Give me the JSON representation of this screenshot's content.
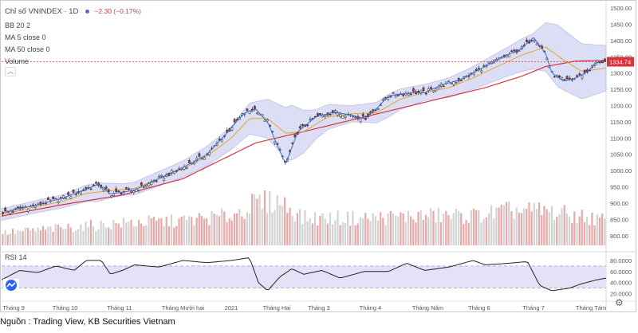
{
  "legend": {
    "symbol": "Chỉ số VNINDEX · 1D",
    "change": "−2.30 (−0.17%)",
    "bb": "BB 20 2",
    "ma5": "MA 5 close 0",
    "ma50": "MA 50 close 0",
    "volume": "Volume",
    "collapse": "︿"
  },
  "rsi_label": "RSI 14",
  "source_note": "Nguồn : Trading View, KB Securities Vietnam",
  "colors": {
    "up": "#ffffff",
    "down": "#c0392b",
    "ma5": "#3b6fd4",
    "ma50": "#d8343f",
    "mid": "#e0a72c",
    "band": "#cfd3f2",
    "volume": "#e7a8a8",
    "volume_gray": "#d3d3d3",
    "rsi": "#222222",
    "rsi_band": "#e5e1f7",
    "price_label_bg": "#d8343f"
  },
  "chart_data": {
    "type": "candlestick",
    "title": "Chỉ số VNINDEX · 1D",
    "last_price": "1334.74",
    "price_axis": {
      "ylim": [
        770,
        1510
      ],
      "ticks": [
        "1500.00",
        "1450.00",
        "1400.00",
        "1350.00",
        "1300.00",
        "1250.00",
        "1200.00",
        "1150.00",
        "1100.00",
        "1050.00",
        "1000.00",
        "950.00",
        "900.00",
        "850.00",
        "800.00"
      ]
    },
    "rsi_axis": {
      "ylim": [
        15,
        90
      ],
      "ticks": [
        "80.0000",
        "60.0000",
        "40.0000",
        "20.0000"
      ],
      "overbought": 70,
      "oversold": 30
    },
    "x_labels": [
      "Tháng 9",
      "Tháng 10",
      "Tháng 11",
      "Tháng Mười hai",
      "2021",
      "Tháng Hai",
      "Tháng 3",
      "Tháng 4",
      "Tháng Năm",
      "Tháng 6",
      "Tháng 7",
      "Tháng Tám"
    ],
    "x_label_pos": [
      0.02,
      0.105,
      0.195,
      0.3,
      0.38,
      0.455,
      0.525,
      0.61,
      0.705,
      0.79,
      0.88,
      0.975
    ],
    "close_anchors": [
      [
        0,
        870
      ],
      [
        0.06,
        895
      ],
      [
        0.1,
        915
      ],
      [
        0.13,
        935
      ],
      [
        0.16,
        958
      ],
      [
        0.18,
        928
      ],
      [
        0.22,
        940
      ],
      [
        0.26,
        975
      ],
      [
        0.3,
        1010
      ],
      [
        0.34,
        1050
      ],
      [
        0.37,
        1110
      ],
      [
        0.4,
        1175
      ],
      [
        0.42,
        1190
      ],
      [
        0.44,
        1150
      ],
      [
        0.46,
        1060
      ],
      [
        0.47,
        1020
      ],
      [
        0.49,
        1120
      ],
      [
        0.52,
        1165
      ],
      [
        0.55,
        1180
      ],
      [
        0.58,
        1170
      ],
      [
        0.6,
        1160
      ],
      [
        0.62,
        1190
      ],
      [
        0.64,
        1230
      ],
      [
        0.68,
        1240
      ],
      [
        0.7,
        1240
      ],
      [
        0.73,
        1265
      ],
      [
        0.76,
        1280
      ],
      [
        0.8,
        1320
      ],
      [
        0.83,
        1350
      ],
      [
        0.86,
        1375
      ],
      [
        0.88,
        1410
      ],
      [
        0.9,
        1360
      ],
      [
        0.91,
        1300
      ],
      [
        0.93,
        1275
      ],
      [
        0.95,
        1285
      ],
      [
        0.97,
        1305
      ],
      [
        0.985,
        1335
      ],
      [
        1,
        1334.74
      ]
    ],
    "ma50_anchors": [
      [
        0,
        860
      ],
      [
        0.1,
        895
      ],
      [
        0.2,
        925
      ],
      [
        0.3,
        975
      ],
      [
        0.36,
        1030
      ],
      [
        0.42,
        1085
      ],
      [
        0.5,
        1120
      ],
      [
        0.6,
        1165
      ],
      [
        0.7,
        1210
      ],
      [
        0.8,
        1255
      ],
      [
        0.86,
        1290
      ],
      [
        0.9,
        1320
      ],
      [
        0.95,
        1337
      ],
      [
        1,
        1338
      ]
    ],
    "mid_anchors": [
      [
        0,
        865
      ],
      [
        0.06,
        890
      ],
      [
        0.1,
        905
      ],
      [
        0.14,
        930
      ],
      [
        0.18,
        938
      ],
      [
        0.22,
        945
      ],
      [
        0.26,
        975
      ],
      [
        0.3,
        1005
      ],
      [
        0.34,
        1045
      ],
      [
        0.38,
        1100
      ],
      [
        0.41,
        1160
      ],
      [
        0.44,
        1160
      ],
      [
        0.47,
        1115
      ],
      [
        0.5,
        1120
      ],
      [
        0.54,
        1165
      ],
      [
        0.58,
        1175
      ],
      [
        0.62,
        1178
      ],
      [
        0.66,
        1220
      ],
      [
        0.7,
        1240
      ],
      [
        0.74,
        1255
      ],
      [
        0.78,
        1285
      ],
      [
        0.82,
        1320
      ],
      [
        0.86,
        1355
      ],
      [
        0.9,
        1380
      ],
      [
        0.93,
        1340
      ],
      [
        0.96,
        1305
      ],
      [
        1,
        1315
      ]
    ],
    "band_width_anchors": [
      [
        0,
        18
      ],
      [
        0.1,
        20
      ],
      [
        0.16,
        28
      ],
      [
        0.2,
        18
      ],
      [
        0.3,
        25
      ],
      [
        0.38,
        35
      ],
      [
        0.44,
        60
      ],
      [
        0.48,
        85
      ],
      [
        0.52,
        45
      ],
      [
        0.58,
        25
      ],
      [
        0.64,
        35
      ],
      [
        0.7,
        25
      ],
      [
        0.78,
        35
      ],
      [
        0.84,
        45
      ],
      [
        0.88,
        55
      ],
      [
        0.92,
        95
      ],
      [
        0.96,
        85
      ],
      [
        1,
        70
      ]
    ],
    "volume_anchors": [
      [
        0,
        0.25
      ],
      [
        0.1,
        0.35
      ],
      [
        0.2,
        0.45
      ],
      [
        0.3,
        0.5
      ],
      [
        0.38,
        0.6
      ],
      [
        0.42,
        0.85
      ],
      [
        0.46,
        0.9
      ],
      [
        0.5,
        0.55
      ],
      [
        0.6,
        0.55
      ],
      [
        0.7,
        0.6
      ],
      [
        0.78,
        0.6
      ],
      [
        0.84,
        0.7
      ],
      [
        0.9,
        0.7
      ],
      [
        1,
        0.5
      ]
    ],
    "rsi_anchors": [
      [
        0,
        45
      ],
      [
        0.03,
        62
      ],
      [
        0.06,
        58
      ],
      [
        0.09,
        70
      ],
      [
        0.12,
        62
      ],
      [
        0.14,
        80
      ],
      [
        0.165,
        80
      ],
      [
        0.18,
        55
      ],
      [
        0.2,
        62
      ],
      [
        0.22,
        72
      ],
      [
        0.26,
        68
      ],
      [
        0.3,
        80
      ],
      [
        0.34,
        76
      ],
      [
        0.38,
        80
      ],
      [
        0.41,
        85
      ],
      [
        0.425,
        40
      ],
      [
        0.44,
        25
      ],
      [
        0.46,
        50
      ],
      [
        0.48,
        65
      ],
      [
        0.5,
        55
      ],
      [
        0.53,
        62
      ],
      [
        0.56,
        48
      ],
      [
        0.6,
        60
      ],
      [
        0.64,
        60
      ],
      [
        0.67,
        75
      ],
      [
        0.7,
        62
      ],
      [
        0.74,
        68
      ],
      [
        0.78,
        80
      ],
      [
        0.8,
        72
      ],
      [
        0.84,
        75
      ],
      [
        0.87,
        78
      ],
      [
        0.89,
        35
      ],
      [
        0.91,
        25
      ],
      [
        0.94,
        30
      ],
      [
        0.96,
        38
      ],
      [
        0.985,
        45
      ],
      [
        1,
        48
      ]
    ]
  }
}
